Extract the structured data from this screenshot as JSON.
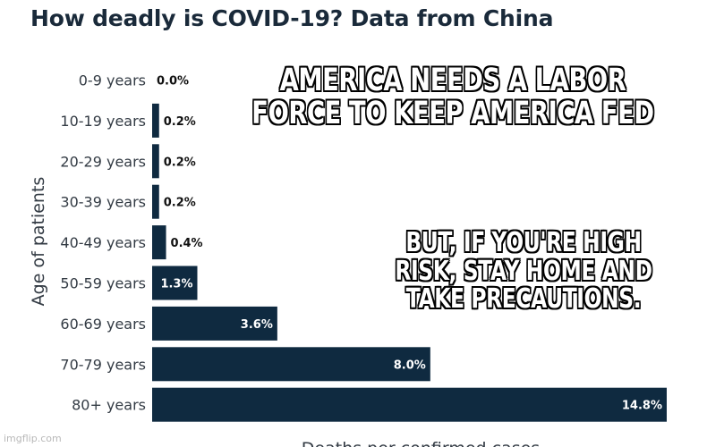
{
  "chart_data": {
    "type": "bar",
    "orientation": "horizontal",
    "title": "How deadly is COVID-19? Data from China",
    "ylabel": "Age of patients",
    "xlabel": "Deaths per confirmed cases",
    "categories": [
      "0-9 years",
      "10-19 years",
      "20-29 years",
      "30-39 years",
      "40-49 years",
      "50-59 years",
      "60-69 years",
      "70-79 years",
      "80+ years"
    ],
    "values": [
      0.0,
      0.2,
      0.2,
      0.2,
      0.4,
      1.3,
      3.6,
      8.0,
      14.8
    ],
    "data_labels": [
      "0.0%",
      "0.2%",
      "0.2%",
      "0.2%",
      "0.4%",
      "1.3%",
      "3.6%",
      "8.0%",
      "14.8%"
    ],
    "xlim": [
      0,
      14.8
    ],
    "bar_color": "#0f2a40"
  },
  "meme": {
    "top_text": "AMERICA NEEDS A LABOR FORCE TO KEEP AMERICA FED",
    "bottom_text": "BUT, IF YOU'RE HIGH RISK, STAY HOME AND TAKE PRECAUTIONS."
  },
  "watermark": "imgflip.com"
}
